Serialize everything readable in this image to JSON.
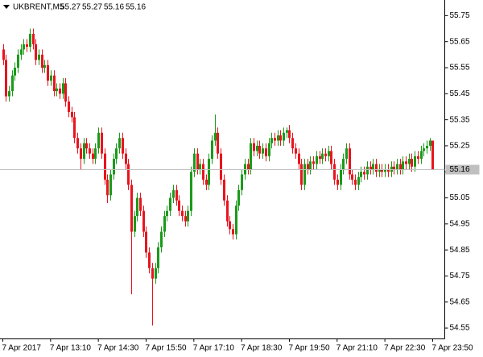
{
  "chart_data": {
    "type": "candlestick",
    "symbol": "UKBRENT,M5",
    "up_color": "#1a9a1a",
    "down_color": "#e8141e",
    "categories": [
      "7 Apr 2017",
      null,
      null,
      null,
      null,
      null,
      null,
      null,
      null,
      null,
      null,
      null,
      null,
      null,
      null,
      null,
      "7 Apr 13:10",
      null,
      null,
      null,
      null,
      null,
      null,
      null,
      null,
      null,
      null,
      null,
      null,
      null,
      null,
      null,
      "7 Apr 14:30",
      null,
      null,
      null,
      null,
      null,
      null,
      null,
      null,
      null,
      null,
      null,
      null,
      null,
      null,
      null,
      "7 Apr 15:50",
      null,
      null,
      null,
      null,
      null,
      null,
      null,
      null,
      null,
      null,
      null,
      null,
      null,
      null,
      null,
      "7 Apr 17:10",
      null,
      null,
      null,
      null,
      null,
      null,
      null,
      null,
      null,
      null,
      null,
      null,
      null,
      null,
      null,
      "7 Apr 18:30",
      null,
      null,
      null,
      null,
      null,
      null,
      null,
      null,
      null,
      null,
      null,
      null,
      null,
      null,
      null,
      "7 Apr 19:50",
      null,
      null,
      null,
      null,
      null,
      null,
      null,
      null,
      null,
      null,
      null,
      null,
      null,
      null,
      null,
      "7 Apr 21:10",
      null,
      null,
      null,
      null,
      null,
      null,
      null,
      null,
      null,
      null,
      null,
      null,
      null,
      null,
      null,
      "7 Apr 22:30",
      null,
      null,
      null,
      null,
      null,
      null,
      null,
      null,
      null,
      null,
      null,
      null,
      null,
      null,
      null,
      "7 Apr 23:50"
    ],
    "open": [
      55.62,
      55.58,
      55.44,
      55.46,
      55.52,
      55.55,
      55.6,
      55.62,
      55.64,
      55.63,
      55.68,
      55.64,
      55.58,
      55.6,
      55.55,
      55.56,
      55.5,
      55.52,
      55.46,
      55.47,
      55.45,
      55.49,
      55.42,
      55.38,
      55.36,
      55.28,
      55.24,
      55.2,
      55.26,
      55.24,
      55.22,
      55.2,
      55.24,
      55.3,
      55.22,
      55.12,
      55.06,
      55.14,
      55.2,
      55.24,
      55.28,
      55.22,
      55.18,
      55.1,
      54.92,
      54.98,
      55.05,
      55.0,
      54.92,
      54.84,
      54.78,
      54.74,
      54.78,
      54.86,
      54.92,
      54.98,
      55.0,
      55.05,
      55.08,
      55.04,
      55.0,
      54.98,
      54.96,
      55.0,
      55.15,
      55.22,
      55.16,
      55.18,
      55.12,
      55.1,
      55.2,
      55.27,
      55.3,
      55.22,
      55.12,
      55.04,
      54.96,
      54.93,
      54.91,
      55.02,
      55.08,
      55.14,
      55.18,
      55.16,
      55.26,
      55.23,
      55.25,
      55.22,
      55.24,
      55.21,
      55.26,
      55.28,
      55.27,
      55.29,
      55.27,
      55.3,
      55.31,
      55.28,
      55.24,
      55.22,
      55.18,
      55.1,
      55.18,
      55.16,
      55.19,
      55.18,
      55.21,
      55.2,
      55.22,
      55.21,
      55.23,
      55.18,
      55.12,
      55.1,
      55.16,
      55.2,
      55.24,
      55.14,
      55.12,
      55.1,
      55.13,
      55.15,
      55.14,
      55.17,
      55.16,
      55.18,
      55.15,
      55.16,
      55.15,
      55.16,
      55.15,
      55.17,
      55.16,
      55.18,
      55.16,
      55.19,
      55.18,
      55.2,
      55.17,
      55.21,
      55.2,
      55.23,
      55.24,
      55.25,
      55.27
    ],
    "high": [
      55.64,
      55.6,
      55.48,
      55.54,
      55.57,
      55.62,
      55.64,
      55.66,
      55.66,
      55.7,
      55.7,
      55.66,
      55.62,
      55.62,
      55.58,
      55.58,
      55.54,
      55.54,
      55.49,
      55.49,
      55.51,
      55.51,
      55.44,
      55.4,
      55.38,
      55.3,
      55.26,
      55.28,
      55.28,
      55.26,
      55.24,
      55.26,
      55.32,
      55.32,
      55.24,
      55.14,
      55.16,
      55.22,
      55.26,
      55.3,
      55.3,
      55.24,
      55.2,
      55.12,
      55.0,
      55.07,
      55.07,
      55.02,
      54.94,
      54.86,
      54.8,
      54.8,
      54.88,
      54.94,
      55.0,
      55.02,
      55.07,
      55.1,
      55.1,
      55.06,
      55.02,
      55.0,
      55.02,
      55.17,
      55.24,
      55.24,
      55.2,
      55.2,
      55.14,
      55.22,
      55.29,
      55.37,
      55.32,
      55.24,
      55.14,
      55.06,
      54.98,
      54.95,
      55.04,
      55.1,
      55.16,
      55.2,
      55.2,
      55.28,
      55.28,
      55.27,
      55.27,
      55.26,
      55.26,
      55.28,
      55.3,
      55.3,
      55.31,
      55.31,
      55.32,
      55.32,
      55.33,
      55.3,
      55.26,
      55.24,
      55.2,
      55.2,
      55.2,
      55.21,
      55.21,
      55.23,
      55.23,
      55.24,
      55.24,
      55.25,
      55.25,
      55.2,
      55.14,
      55.18,
      55.22,
      55.26,
      55.26,
      55.16,
      55.14,
      55.15,
      55.17,
      55.17,
      55.19,
      55.19,
      55.2,
      55.2,
      55.18,
      55.18,
      55.18,
      55.18,
      55.19,
      55.19,
      55.2,
      55.2,
      55.21,
      55.21,
      55.22,
      55.22,
      55.23,
      55.23,
      55.25,
      55.26,
      55.27,
      55.28,
      55.27
    ],
    "low": [
      55.56,
      55.42,
      55.42,
      55.44,
      55.5,
      55.53,
      55.58,
      55.6,
      55.61,
      55.61,
      55.62,
      55.56,
      55.56,
      55.53,
      55.53,
      55.48,
      55.48,
      55.44,
      55.44,
      55.43,
      55.43,
      55.4,
      55.36,
      55.34,
      55.26,
      55.22,
      55.16,
      55.18,
      55.22,
      55.2,
      55.18,
      55.18,
      55.22,
      55.2,
      55.1,
      55.03,
      55.04,
      55.12,
      55.18,
      55.22,
      55.2,
      55.16,
      55.08,
      54.68,
      54.9,
      54.96,
      54.98,
      54.9,
      54.82,
      54.76,
      54.56,
      54.72,
      54.76,
      54.84,
      54.9,
      54.96,
      54.98,
      55.03,
      55.02,
      54.98,
      54.96,
      54.94,
      54.94,
      54.98,
      55.13,
      55.14,
      55.14,
      55.1,
      55.08,
      55.08,
      55.18,
      55.25,
      55.2,
      55.1,
      55.02,
      54.94,
      54.91,
      54.89,
      54.89,
      55.0,
      55.06,
      55.12,
      55.14,
      55.14,
      55.21,
      55.21,
      55.2,
      55.2,
      55.19,
      55.19,
      55.24,
      55.25,
      55.25,
      55.25,
      55.25,
      55.28,
      55.26,
      55.22,
      55.2,
      55.16,
      55.08,
      55.08,
      55.14,
      55.14,
      55.16,
      55.16,
      55.18,
      55.18,
      55.19,
      55.19,
      55.16,
      55.1,
      55.08,
      55.08,
      55.14,
      55.18,
      55.12,
      55.1,
      55.08,
      55.08,
      55.11,
      55.12,
      55.12,
      55.14,
      55.14,
      55.13,
      55.13,
      55.13,
      55.13,
      55.13,
      55.13,
      55.14,
      55.14,
      55.14,
      55.14,
      55.16,
      55.16,
      55.15,
      55.15,
      55.18,
      55.18,
      55.21,
      55.22,
      55.23,
      55.16
    ],
    "close": [
      55.58,
      55.44,
      55.46,
      55.52,
      55.55,
      55.6,
      55.62,
      55.64,
      55.63,
      55.68,
      55.64,
      55.58,
      55.6,
      55.55,
      55.56,
      55.5,
      55.52,
      55.46,
      55.47,
      55.45,
      55.49,
      55.42,
      55.38,
      55.36,
      55.28,
      55.24,
      55.2,
      55.26,
      55.24,
      55.22,
      55.2,
      55.24,
      55.3,
      55.22,
      55.12,
      55.06,
      55.14,
      55.2,
      55.24,
      55.28,
      55.22,
      55.18,
      55.1,
      54.92,
      54.98,
      55.05,
      55.0,
      54.92,
      54.84,
      54.78,
      54.74,
      54.78,
      54.86,
      54.92,
      54.98,
      55.0,
      55.05,
      55.08,
      55.04,
      55.0,
      54.98,
      54.96,
      55.0,
      55.15,
      55.22,
      55.16,
      55.18,
      55.12,
      55.1,
      55.2,
      55.27,
      55.3,
      55.22,
      55.12,
      55.04,
      54.96,
      54.93,
      54.91,
      55.02,
      55.08,
      55.14,
      55.18,
      55.16,
      55.26,
      55.23,
      55.25,
      55.22,
      55.24,
      55.21,
      55.26,
      55.28,
      55.27,
      55.29,
      55.27,
      55.3,
      55.31,
      55.28,
      55.24,
      55.22,
      55.18,
      55.1,
      55.18,
      55.16,
      55.19,
      55.18,
      55.21,
      55.2,
      55.22,
      55.21,
      55.23,
      55.18,
      55.12,
      55.1,
      55.16,
      55.2,
      55.24,
      55.14,
      55.12,
      55.1,
      55.13,
      55.15,
      55.14,
      55.17,
      55.16,
      55.18,
      55.15,
      55.16,
      55.15,
      55.16,
      55.15,
      55.17,
      55.16,
      55.18,
      55.16,
      55.19,
      55.18,
      55.2,
      55.17,
      55.21,
      55.2,
      55.23,
      55.24,
      55.25,
      55.27,
      55.16
    ],
    "ylim": [
      54.51,
      55.81
    ],
    "yticks": [
      55.75,
      55.65,
      55.55,
      55.45,
      55.35,
      55.25,
      55.15,
      55.05,
      54.95,
      54.85,
      54.75,
      54.65,
      54.55
    ]
  }
}
